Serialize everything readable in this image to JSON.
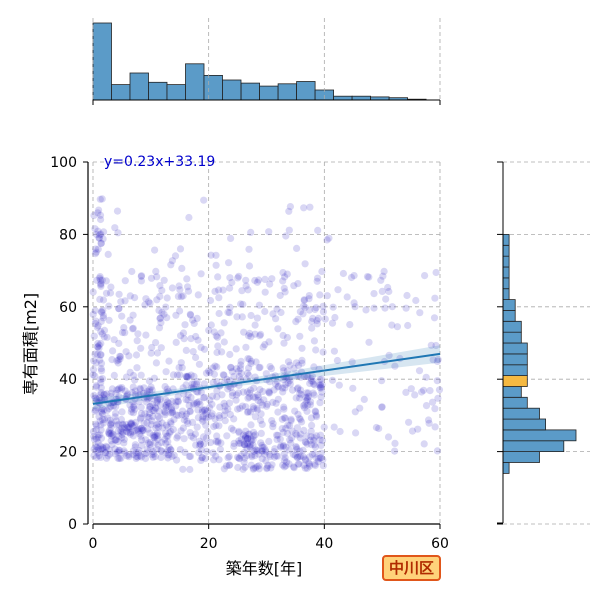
{
  "chart_data": {
    "type": "scatter",
    "title": "",
    "xlabel": "築年数[年]",
    "ylabel": "専有面積[m2]",
    "xlim": [
      0,
      60
    ],
    "ylim": [
      0,
      100
    ],
    "x_ticks": [
      0,
      20,
      40,
      60
    ],
    "y_ticks": [
      0,
      20,
      40,
      60,
      80,
      100
    ],
    "grid": true,
    "regression": {
      "label": "y=0.23x+33.19",
      "slope": 0.23,
      "intercept": 33.19
    },
    "badge": "中川区",
    "colors": {
      "points": "#2a1fc4",
      "regression": "#1f77b4",
      "histogram": "#5b9bc8",
      "highlight": "#f5b942",
      "badge_fill": "#ffd27a",
      "badge_border": "#e0561a"
    },
    "clusters": [
      {
        "x": [
          0,
          2
        ],
        "y": [
          18,
          90
        ],
        "n": 70
      },
      {
        "x": [
          0,
          14
        ],
        "y": [
          18,
          38
        ],
        "n": 260
      },
      {
        "x": [
          0,
          40
        ],
        "y": [
          18,
          70
        ],
        "n": 480
      },
      {
        "x": [
          14,
          40
        ],
        "y": [
          15,
          45
        ],
        "n": 260
      },
      {
        "x": [
          25,
          40
        ],
        "y": [
          15,
          25
        ],
        "n": 80
      },
      {
        "x": [
          40,
          60
        ],
        "y": [
          20,
          70
        ],
        "n": 90
      },
      {
        "x": [
          0,
          42
        ],
        "y": [
          65,
          90
        ],
        "n": 40
      }
    ],
    "x_histogram": {
      "bin_edges": [
        0,
        3.2,
        6.4,
        9.6,
        12.8,
        16,
        19.2,
        22.4,
        25.6,
        28.8,
        32,
        35.2,
        38.4,
        41.6,
        44.8,
        48,
        51.2,
        54.4,
        57.6
      ],
      "counts": [
        100,
        20,
        35,
        23,
        20,
        47,
        32,
        26,
        22,
        18,
        21,
        24,
        13,
        5,
        5,
        4,
        3,
        1
      ]
    },
    "y_histogram": {
      "bin_edges": [
        14,
        17,
        20,
        23,
        26,
        29,
        32,
        35,
        38,
        41,
        44,
        47,
        50,
        53,
        56,
        59,
        62,
        65,
        68,
        71,
        74,
        77,
        80,
        83,
        86
      ],
      "counts": [
        1,
        6,
        10,
        12,
        7,
        6,
        4,
        3,
        4,
        4,
        4,
        4,
        3,
        3,
        2,
        2,
        1,
        1,
        1,
        1,
        1,
        1,
        0,
        0
      ],
      "highlight_bin_index": 8
    }
  }
}
